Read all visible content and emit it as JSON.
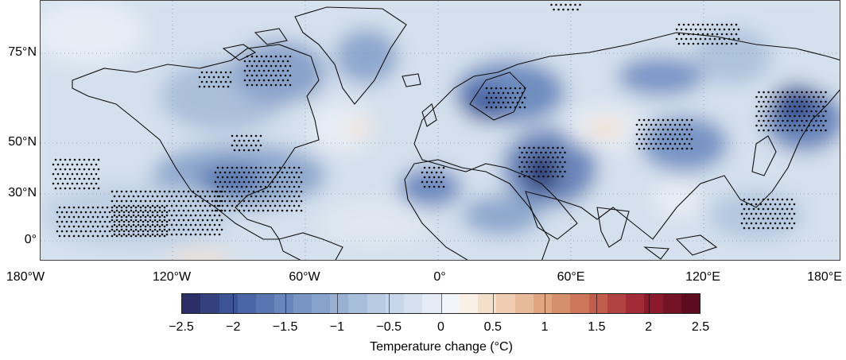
{
  "map": {
    "latitude_labels": [
      "75°N",
      "50°N",
      "30°N",
      "0°"
    ],
    "longitude_labels": [
      "180°W",
      "120°W",
      "60°W",
      "0°",
      "60°E",
      "120°E",
      "180°E"
    ],
    "gridlines": "dotted",
    "stippling": "present",
    "coastlines": "black outline"
  },
  "colorbar": {
    "ticks": [
      "−2.5",
      "−2",
      "−1.5",
      "−1",
      "−0.5",
      "0",
      "0.5",
      "1",
      "1.5",
      "2",
      "2.5"
    ],
    "range": [
      -2.5,
      2.5
    ],
    "steps": 25,
    "label": "Temperature change (°C)",
    "negative_colors": [
      "#2b2f66",
      "#33427f",
      "#3c5495",
      "#4a66a6",
      "#5a76b1",
      "#6886ba",
      "#7895c3",
      "#88a3cb",
      "#98b1d3",
      "#a8bfdb",
      "#b8cbe2",
      "#c7d6e9",
      "#d6e1ef",
      "#e4ebf4",
      "#f2f5f9"
    ],
    "positive_colors": [
      "#faf0e6",
      "#f4dfcb",
      "#eecdb2",
      "#e7ba99",
      "#dfa680",
      "#d68f6b",
      "#cc765a",
      "#c05d4c",
      "#b14341",
      "#a12b37",
      "#8c1a2d",
      "#741226",
      "#5c0c1e"
    ]
  }
}
